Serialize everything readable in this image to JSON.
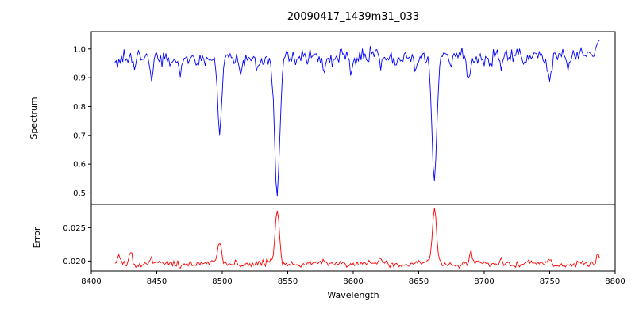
{
  "chart_data": {
    "type": "line",
    "title": "20090417_1439m31_033",
    "xlabel": "Wavelength",
    "x_range": [
      8400,
      8800
    ],
    "x_tick_values": [
      8400,
      8450,
      8500,
      8550,
      8600,
      8650,
      8700,
      8750,
      8800
    ],
    "x_tick_labels": [
      "8400",
      "8450",
      "8500",
      "8550",
      "8600",
      "8650",
      "8700",
      "8750",
      "8800"
    ],
    "grid": false,
    "legend": "none",
    "panels": [
      {
        "ylabel": "Spectrum",
        "y_range": [
          0.46,
          1.06
        ],
        "y_tick_values": [
          1.0,
          0.9,
          0.8,
          0.7,
          0.6,
          0.5
        ],
        "y_tick_labels": [
          "1.0",
          "0.9",
          "0.8",
          "0.7",
          "0.6",
          "0.5"
        ],
        "series": [
          {
            "name": "spectrum",
            "color": "#0000ff",
            "x_start": 8418,
            "x_end": 8788,
            "x_step": 1,
            "baseline": 0.972,
            "slope_per_100": 0.004,
            "noise_sd": 0.012,
            "seed": 7,
            "wiggles": [
              {
                "amp": 0.008,
                "period": 57,
                "phase": 1.2
              },
              {
                "amp": 0.005,
                "period": 23,
                "phase": 4.0
              }
            ],
            "features": [
              {
                "center": 8433,
                "delta": -0.045,
                "sigma": 1.1
              },
              {
                "center": 8446,
                "delta": -0.065,
                "sigma": 1.2
              },
              {
                "center": 8468,
                "delta": -0.04,
                "sigma": 1.0
              },
              {
                "center": 8480,
                "delta": -0.03,
                "sigma": 1.0
              },
              {
                "center": 8498,
                "delta": -0.28,
                "sigma": 1.6
              },
              {
                "center": 8514,
                "delta": -0.04,
                "sigma": 1.0
              },
              {
                "center": 8527,
                "delta": -0.03,
                "sigma": 1.0
              },
              {
                "center": 8542,
                "delta": -0.47,
                "sigma": 2.0
              },
              {
                "center": 8556,
                "delta": -0.03,
                "sigma": 1.0
              },
              {
                "center": 8578,
                "delta": -0.045,
                "sigma": 1.1
              },
              {
                "center": 8598,
                "delta": -0.04,
                "sigma": 1.0
              },
              {
                "center": 8611,
                "delta": -0.03,
                "sigma": 1.0
              },
              {
                "center": 8621,
                "delta": -0.035,
                "sigma": 1.0
              },
              {
                "center": 8648,
                "delta": -0.045,
                "sigma": 1.1
              },
              {
                "center": 8662,
                "delta": -0.44,
                "sigma": 1.9
              },
              {
                "center": 8675,
                "delta": -0.035,
                "sigma": 1.0
              },
              {
                "center": 8688,
                "delta": -0.075,
                "sigma": 1.3
              },
              {
                "center": 8713,
                "delta": -0.045,
                "sigma": 1.1
              },
              {
                "center": 8730,
                "delta": -0.03,
                "sigma": 1.0
              },
              {
                "center": 8750,
                "delta": -0.085,
                "sigma": 1.4
              },
              {
                "center": 8764,
                "delta": -0.035,
                "sigma": 1.0
              },
              {
                "center": 8789,
                "delta": 0.04,
                "sigma": 2.5
              }
            ]
          }
        ]
      },
      {
        "ylabel": "Error",
        "y_range": [
          0.0185,
          0.0285
        ],
        "y_tick_values": [
          0.025,
          0.02
        ],
        "y_tick_labels": [
          "0.025",
          "0.020"
        ],
        "series": [
          {
            "name": "error",
            "color": "#ff0000",
            "x_start": 8418,
            "x_end": 8788,
            "x_step": 1,
            "baseline": 0.0196,
            "slope_per_100": 0.0,
            "noise_sd": 0.00022,
            "seed": 13,
            "wiggles": [
              {
                "amp": 0.0002,
                "period": 41,
                "phase": 0.7
              }
            ],
            "features": [
              {
                "center": 8421,
                "delta": 0.0012,
                "sigma": 1.0
              },
              {
                "center": 8430,
                "delta": 0.0022,
                "sigma": 1.2
              },
              {
                "center": 8446,
                "delta": 0.0008,
                "sigma": 1.0
              },
              {
                "center": 8498,
                "delta": 0.0032,
                "sigma": 1.4
              },
              {
                "center": 8542,
                "delta": 0.0082,
                "sigma": 1.6
              },
              {
                "center": 8578,
                "delta": 0.0006,
                "sigma": 1.0
              },
              {
                "center": 8621,
                "delta": 0.0005,
                "sigma": 1.0
              },
              {
                "center": 8662,
                "delta": 0.0081,
                "sigma": 1.6
              },
              {
                "center": 8690,
                "delta": 0.0018,
                "sigma": 1.1
              },
              {
                "center": 8713,
                "delta": 0.0008,
                "sigma": 1.0
              },
              {
                "center": 8750,
                "delta": 0.0009,
                "sigma": 1.0
              },
              {
                "center": 8787,
                "delta": 0.0014,
                "sigma": 1.2
              }
            ]
          }
        ]
      }
    ]
  }
}
